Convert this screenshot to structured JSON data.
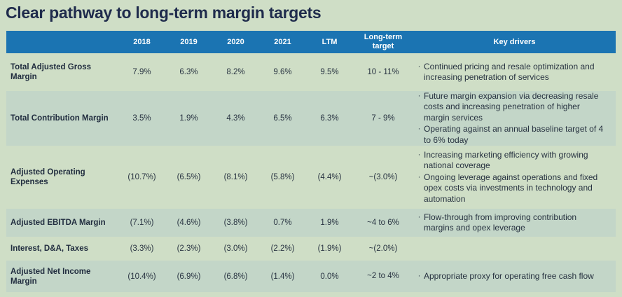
{
  "page": {
    "title": "Clear pathway to long-term margin targets"
  },
  "colors": {
    "page_background": "#cfdec6",
    "header_background": "#1b74b2",
    "header_text": "#ffffff",
    "shaded_row_background": "#c3d6c8",
    "title_text": "#1f2b4c",
    "body_text": "#273240"
  },
  "table": {
    "value_columns": [
      "2018",
      "2019",
      "2020",
      "2021",
      "LTM"
    ],
    "target_column": "Long-term target",
    "drivers_column": "Key drivers",
    "bullet_glyph": "·",
    "rows": [
      {
        "label": "Total Adjusted Gross Margin",
        "values": [
          "7.9%",
          "6.3%",
          "8.2%",
          "9.6%",
          "9.5%"
        ],
        "target": "10 - 11%",
        "drivers": [
          "Continued pricing and resale optimization and increasing penetration of services"
        ]
      },
      {
        "label": "Total Contribution Margin",
        "values": [
          "3.5%",
          "1.9%",
          "4.3%",
          "6.5%",
          "6.3%"
        ],
        "target": "7 - 9%",
        "drivers": [
          "Future margin expansion via decreasing resale costs and increasing penetration of higher margin services",
          "Operating against an annual baseline target of 4 to 6% today"
        ]
      },
      {
        "label": "Adjusted Operating Expenses",
        "values": [
          "(10.7%)",
          "(6.5%)",
          "(8.1%)",
          "(5.8%)",
          "(4.4%)"
        ],
        "target": "~(3.0%)",
        "drivers": [
          "Increasing marketing efficiency with growing national coverage",
          "Ongoing leverage against operations and fixed opex costs via investments in technology and automation"
        ]
      },
      {
        "label": "Adjusted EBITDA Margin",
        "values": [
          "(7.1%)",
          "(4.6%)",
          "(3.8%)",
          "0.7%",
          "1.9%"
        ],
        "target": "~4 to 6%",
        "drivers": [
          "Flow-through from improving contribution margins and opex leverage"
        ]
      },
      {
        "label": "Interest, D&A, Taxes",
        "values": [
          "(3.3%)",
          "(2.3%)",
          "(3.0%)",
          "(2.2%)",
          "(1.9%)"
        ],
        "target": "~(2.0%)",
        "drivers": []
      },
      {
        "label": "Adjusted Net Income Margin",
        "values": [
          "(10.4%)",
          "(6.9%)",
          "(6.8%)",
          "(1.4%)",
          "0.0%"
        ],
        "target": "~2 to 4%",
        "drivers": [
          "Appropriate proxy for operating free cash flow"
        ]
      }
    ]
  }
}
